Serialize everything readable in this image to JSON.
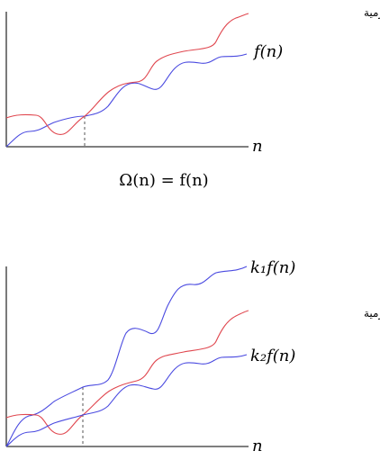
{
  "top_figure": {
    "curve_label_runtime": "وقت تنفيذ الخوارزمية",
    "curve_label_f": "f(n)",
    "axis_label_x": "n",
    "caption": "Ω(n) = f(n)"
  },
  "bottom_figure": {
    "curve_label_k1": "k₁f(n)",
    "curve_label_runtime": "وقت تنفيذ الخوارزمية",
    "curve_label_k2": "k₂f(n)",
    "axis_label_x": "n"
  }
}
